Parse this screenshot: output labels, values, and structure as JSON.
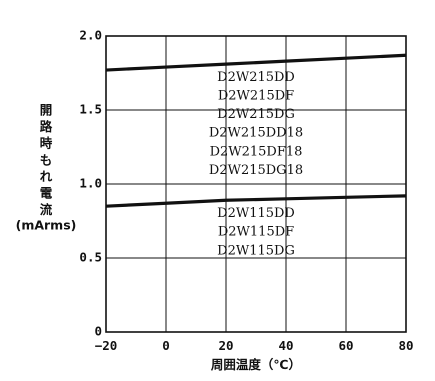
{
  "chart_data": {
    "type": "line",
    "xlabel": "周囲温度（℃）",
    "ylabel_chars": [
      "開",
      "路",
      "時",
      "も",
      "れ",
      "電",
      "流"
    ],
    "ylabel_unit": "(mArms)",
    "xlim": [
      -20,
      80
    ],
    "ylim": [
      0,
      2.0
    ],
    "xticks": [
      -20,
      0,
      20,
      40,
      60,
      80
    ],
    "xtick_labels": [
      "−20",
      "0",
      "20",
      "40",
      "60",
      "80"
    ],
    "yticks": [
      0,
      0.5,
      1.0,
      1.5,
      2.0
    ],
    "ytick_labels": [
      "0",
      "0.5",
      "1.0",
      "1.5",
      "2.0"
    ],
    "grid": true,
    "series": [
      {
        "labels": [
          "D2W215DD",
          "D2W215DF",
          "D2W215DG",
          "D2W215DD18",
          "D2W215DF18",
          "D2W215DG18"
        ],
        "x": [
          -20,
          0,
          20,
          40,
          60,
          80
        ],
        "y": [
          1.77,
          1.79,
          1.81,
          1.83,
          1.85,
          1.87
        ]
      },
      {
        "labels": [
          "D2W115DD",
          "D2W115DF",
          "D2W115DG"
        ],
        "x": [
          -20,
          0,
          20,
          40,
          60,
          80
        ],
        "y": [
          0.85,
          0.87,
          0.89,
          0.9,
          0.91,
          0.92
        ]
      }
    ]
  }
}
